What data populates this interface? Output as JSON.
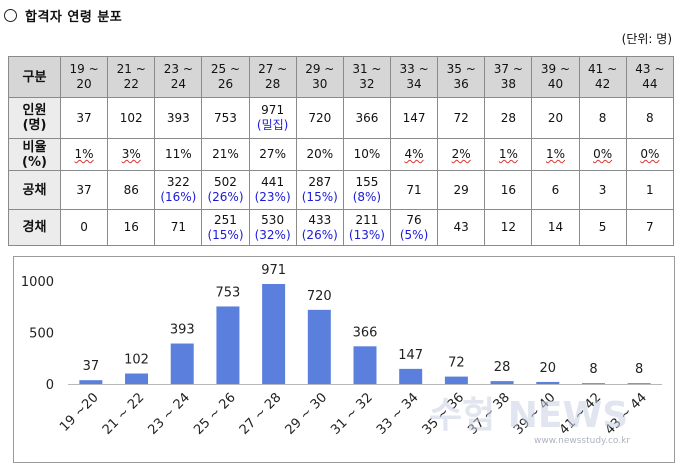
{
  "heading": "합격자 연령 분포",
  "unit": "(단위: 명)",
  "table": {
    "corner": "구분",
    "age_groups": [
      {
        "top": "19 ~",
        "bottom": "20"
      },
      {
        "top": "21 ~",
        "bottom": "22"
      },
      {
        "top": "23 ~",
        "bottom": "24"
      },
      {
        "top": "25 ~",
        "bottom": "26"
      },
      {
        "top": "27 ~",
        "bottom": "28"
      },
      {
        "top": "29 ~",
        "bottom": "30"
      },
      {
        "top": "31 ~",
        "bottom": "32"
      },
      {
        "top": "33 ~",
        "bottom": "34"
      },
      {
        "top": "35 ~",
        "bottom": "36"
      },
      {
        "top": "37 ~",
        "bottom": "38"
      },
      {
        "top": "39 ~",
        "bottom": "40"
      },
      {
        "top": "41 ~",
        "bottom": "42"
      },
      {
        "top": "43 ~",
        "bottom": "44"
      }
    ],
    "rows": [
      {
        "label": "인원\n(명)",
        "cells": [
          {
            "value": "37"
          },
          {
            "value": "102"
          },
          {
            "value": "393"
          },
          {
            "value": "753"
          },
          {
            "value": "971",
            "note": "(밀집)"
          },
          {
            "value": "720"
          },
          {
            "value": "366"
          },
          {
            "value": "147"
          },
          {
            "value": "72"
          },
          {
            "value": "28"
          },
          {
            "value": "20"
          },
          {
            "value": "8"
          },
          {
            "value": "8"
          }
        ]
      },
      {
        "label": "비율\n(%)",
        "cells": [
          {
            "value": "1%"
          },
          {
            "value": "3%"
          },
          {
            "value": "11%"
          },
          {
            "value": "21%"
          },
          {
            "value": "27%"
          },
          {
            "value": "20%"
          },
          {
            "value": "10%"
          },
          {
            "value": "4%"
          },
          {
            "value": "2%"
          },
          {
            "value": "1%"
          },
          {
            "value": "1%"
          },
          {
            "value": "0%"
          },
          {
            "value": "0%"
          }
        ]
      },
      {
        "label": "공채",
        "cells": [
          {
            "value": "37"
          },
          {
            "value": "86"
          },
          {
            "value": "322",
            "note": "(16%)"
          },
          {
            "value": "502",
            "note": "(26%)"
          },
          {
            "value": "441",
            "note": "(23%)"
          },
          {
            "value": "287",
            "note": "(15%)"
          },
          {
            "value": "155",
            "note": "(8%)"
          },
          {
            "value": "71"
          },
          {
            "value": "29"
          },
          {
            "value": "16"
          },
          {
            "value": "6"
          },
          {
            "value": "3"
          },
          {
            "value": "1"
          }
        ]
      },
      {
        "label": "경채",
        "cells": [
          {
            "value": "0"
          },
          {
            "value": "16"
          },
          {
            "value": "71"
          },
          {
            "value": "251",
            "note": "(15%)"
          },
          {
            "value": "530",
            "note": "(32%)"
          },
          {
            "value": "433",
            "note": "(26%)"
          },
          {
            "value": "211",
            "note": "(13%)"
          },
          {
            "value": "76",
            "note": "(5%)"
          },
          {
            "value": "43"
          },
          {
            "value": "12"
          },
          {
            "value": "14"
          },
          {
            "value": "5"
          },
          {
            "value": "7"
          }
        ]
      }
    ]
  },
  "chart_data": {
    "type": "bar",
    "categories": [
      "19 ~20",
      "21 ~ 22",
      "23 ~ 24",
      "25 ~ 26",
      "27 ~ 28",
      "29 ~ 30",
      "31 ~ 32",
      "33 ~ 34",
      "35 ~ 36",
      "37 ~ 38",
      "39 ~ 40",
      "41 ~ 42",
      "43 ~ 44"
    ],
    "values": [
      37,
      102,
      393,
      753,
      971,
      720,
      366,
      147,
      72,
      28,
      20,
      8,
      8
    ],
    "yticks": [
      "0",
      "500",
      "1000"
    ],
    "ylim": [
      0,
      1000
    ],
    "bar_color": "#5b7fdc",
    "grid": false,
    "legend": "none"
  },
  "watermark": {
    "text": "수험 NEWS",
    "url": "www.newsstudy.co.kr"
  }
}
